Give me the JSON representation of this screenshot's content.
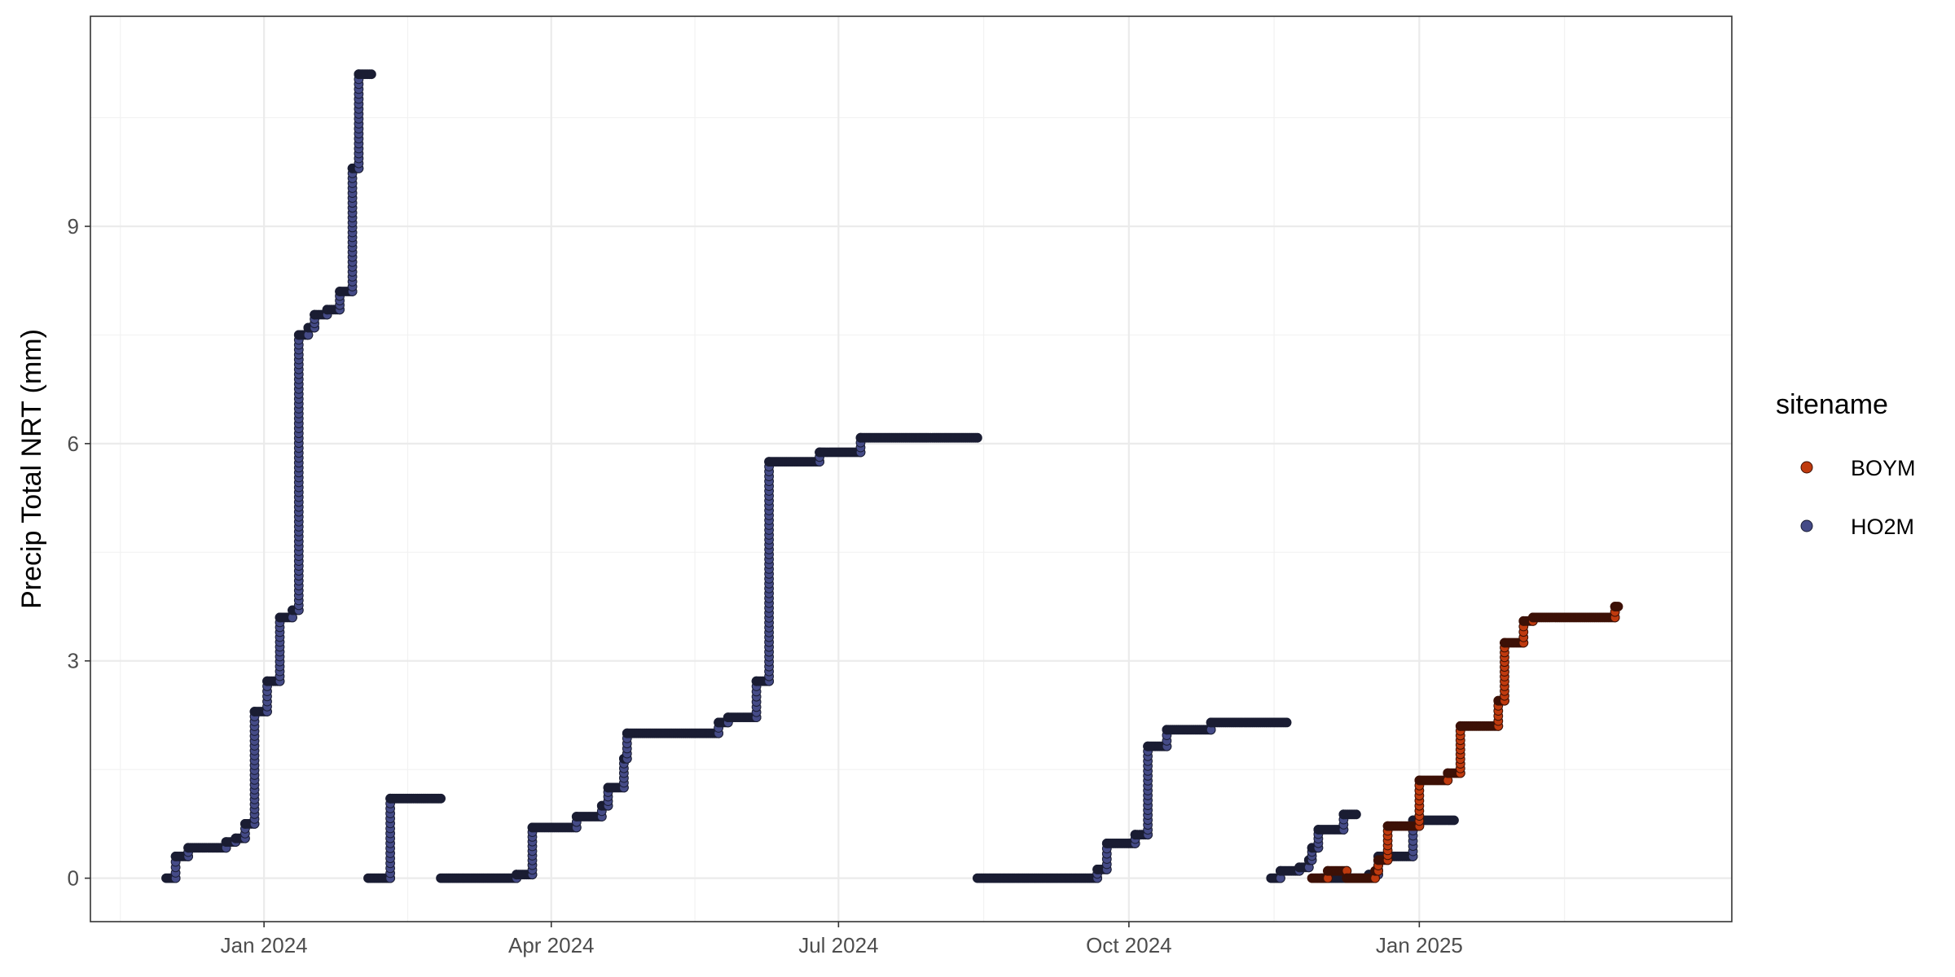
{
  "chart_data": {
    "type": "scatter",
    "xlabel": "",
    "ylabel": "Precip Total NRT (mm)",
    "xlim": [
      "2023-11-07",
      "2025-04-10"
    ],
    "ylim": [
      -0.6,
      11.9
    ],
    "x_ticks": [
      {
        "date": "2024-01-01",
        "label": "Jan 2024"
      },
      {
        "date": "2024-04-01",
        "label": "Apr 2024"
      },
      {
        "date": "2024-07-01",
        "label": "Jul 2024"
      },
      {
        "date": "2024-10-01",
        "label": "Oct 2024"
      },
      {
        "date": "2025-01-01",
        "label": "Jan 2025"
      }
    ],
    "y_ticks": [
      0,
      3,
      6,
      9
    ],
    "grid": true,
    "legend": {
      "title": "sitename",
      "position": "right"
    },
    "series": [
      {
        "name": "HO2M",
        "color": "#454b87",
        "edge": "#1a1d33",
        "segments": [
          [
            [
              "2023-12-01",
              0
            ],
            [
              "2023-12-04",
              0
            ],
            [
              "2023-12-04",
              0.3
            ],
            [
              "2023-12-08",
              0.3
            ],
            [
              "2023-12-08",
              0.42
            ],
            [
              "2023-12-20",
              0.42
            ],
            [
              "2023-12-20",
              0.5
            ],
            [
              "2023-12-23",
              0.5
            ],
            [
              "2023-12-23",
              0.55
            ],
            [
              "2023-12-26",
              0.55
            ],
            [
              "2023-12-26",
              0.75
            ],
            [
              "2023-12-29",
              0.75
            ],
            [
              "2023-12-29",
              2.3
            ],
            [
              "2024-01-02",
              2.3
            ],
            [
              "2024-01-02",
              2.72
            ],
            [
              "2024-01-06",
              2.72
            ],
            [
              "2024-01-06",
              3.6
            ],
            [
              "2024-01-10",
              3.6
            ],
            [
              "2024-01-10",
              3.7
            ],
            [
              "2024-01-12",
              3.7
            ],
            [
              "2024-01-12",
              7.5
            ],
            [
              "2024-01-15",
              7.5
            ],
            [
              "2024-01-15",
              7.6
            ],
            [
              "2024-01-17",
              7.6
            ],
            [
              "2024-01-17",
              7.78
            ],
            [
              "2024-01-21",
              7.78
            ],
            [
              "2024-01-21",
              7.85
            ],
            [
              "2024-01-25",
              7.85
            ],
            [
              "2024-01-25",
              8.1
            ],
            [
              "2024-01-29",
              8.1
            ],
            [
              "2024-01-29",
              9.8
            ],
            [
              "2024-01-31",
              9.8
            ],
            [
              "2024-01-31",
              11.1
            ],
            [
              "2024-02-04",
              11.1
            ]
          ],
          [
            [
              "2024-02-03",
              0
            ],
            [
              "2024-02-10",
              0
            ],
            [
              "2024-02-10",
              1.1
            ],
            [
              "2024-02-26",
              1.1
            ]
          ],
          [
            [
              "2024-02-26",
              0
            ],
            [
              "2024-03-21",
              0
            ],
            [
              "2024-03-21",
              0.05
            ],
            [
              "2024-03-26",
              0.05
            ],
            [
              "2024-03-26",
              0.7
            ],
            [
              "2024-04-09",
              0.7
            ],
            [
              "2024-04-09",
              0.85
            ],
            [
              "2024-04-17",
              0.85
            ],
            [
              "2024-04-17",
              1.0
            ],
            [
              "2024-04-19",
              1.0
            ],
            [
              "2024-04-19",
              1.25
            ],
            [
              "2024-04-24",
              1.25
            ],
            [
              "2024-04-24",
              1.65
            ],
            [
              "2024-04-25",
              1.65
            ],
            [
              "2024-04-25",
              2.0
            ],
            [
              "2024-05-24",
              2.0
            ],
            [
              "2024-05-24",
              2.15
            ],
            [
              "2024-05-27",
              2.15
            ],
            [
              "2024-05-27",
              2.22
            ],
            [
              "2024-06-05",
              2.22
            ],
            [
              "2024-06-05",
              2.72
            ],
            [
              "2024-06-09",
              2.72
            ],
            [
              "2024-06-09",
              5.75
            ],
            [
              "2024-06-25",
              5.75
            ],
            [
              "2024-06-25",
              5.88
            ],
            [
              "2024-07-08",
              5.88
            ],
            [
              "2024-07-08",
              6.08
            ],
            [
              "2024-08-14",
              6.08
            ]
          ],
          [
            [
              "2024-08-14",
              0
            ],
            [
              "2024-09-21",
              0
            ],
            [
              "2024-09-21",
              0.12
            ],
            [
              "2024-09-24",
              0.12
            ],
            [
              "2024-09-24",
              0.48
            ],
            [
              "2024-10-03",
              0.48
            ],
            [
              "2024-10-03",
              0.6
            ],
            [
              "2024-10-07",
              0.6
            ],
            [
              "2024-10-07",
              1.82
            ],
            [
              "2024-10-13",
              1.82
            ],
            [
              "2024-10-13",
              2.05
            ],
            [
              "2024-10-27",
              2.05
            ],
            [
              "2024-10-27",
              2.15
            ],
            [
              "2024-11-20",
              2.15
            ]
          ],
          [
            [
              "2024-11-15",
              0
            ],
            [
              "2024-11-18",
              0
            ],
            [
              "2024-11-18",
              0.1
            ],
            [
              "2024-11-24",
              0.1
            ],
            [
              "2024-11-24",
              0.15
            ],
            [
              "2024-11-27",
              0.15
            ],
            [
              "2024-11-27",
              0.25
            ],
            [
              "2024-11-28",
              0.25
            ],
            [
              "2024-11-28",
              0.42
            ],
            [
              "2024-11-30",
              0.42
            ],
            [
              "2024-11-30",
              0.67
            ],
            [
              "2024-12-08",
              0.67
            ],
            [
              "2024-12-08",
              0.88
            ],
            [
              "2024-12-12",
              0.88
            ]
          ],
          [
            [
              "2024-12-01",
              0
            ],
            [
              "2024-12-16",
              0
            ],
            [
              "2024-12-16",
              0.05
            ],
            [
              "2024-12-19",
              0.05
            ],
            [
              "2024-12-19",
              0.3
            ],
            [
              "2024-12-30",
              0.3
            ],
            [
              "2024-12-30",
              0.8
            ],
            [
              "2025-01-12",
              0.8
            ]
          ]
        ]
      },
      {
        "name": "BOYM",
        "color": "#bf3a0e",
        "edge": "#3d1106",
        "segments": [
          [
            [
              "2024-11-28",
              0
            ],
            [
              "2024-12-03",
              0
            ],
            [
              "2024-12-03",
              0.1
            ],
            [
              "2024-12-09",
              0.1
            ],
            [
              "2024-12-09",
              0
            ],
            [
              "2024-12-18",
              0
            ],
            [
              "2024-12-18",
              0.1
            ],
            [
              "2024-12-19",
              0.1
            ],
            [
              "2024-12-19",
              0.25
            ],
            [
              "2024-12-22",
              0.25
            ],
            [
              "2024-12-22",
              0.72
            ],
            [
              "2025-01-01",
              0.72
            ],
            [
              "2025-01-01",
              1.35
            ],
            [
              "2025-01-10",
              1.35
            ],
            [
              "2025-01-10",
              1.45
            ],
            [
              "2025-01-14",
              1.45
            ],
            [
              "2025-01-14",
              2.1
            ],
            [
              "2025-01-26",
              2.1
            ],
            [
              "2025-01-26",
              2.45
            ],
            [
              "2025-01-28",
              2.45
            ],
            [
              "2025-01-28",
              3.25
            ],
            [
              "2025-02-03",
              3.25
            ],
            [
              "2025-02-03",
              3.55
            ],
            [
              "2025-02-06",
              3.55
            ],
            [
              "2025-02-06",
              3.6
            ],
            [
              "2025-03-04",
              3.6
            ],
            [
              "2025-03-04",
              3.75
            ],
            [
              "2025-03-05",
              3.75
            ]
          ]
        ]
      }
    ]
  }
}
